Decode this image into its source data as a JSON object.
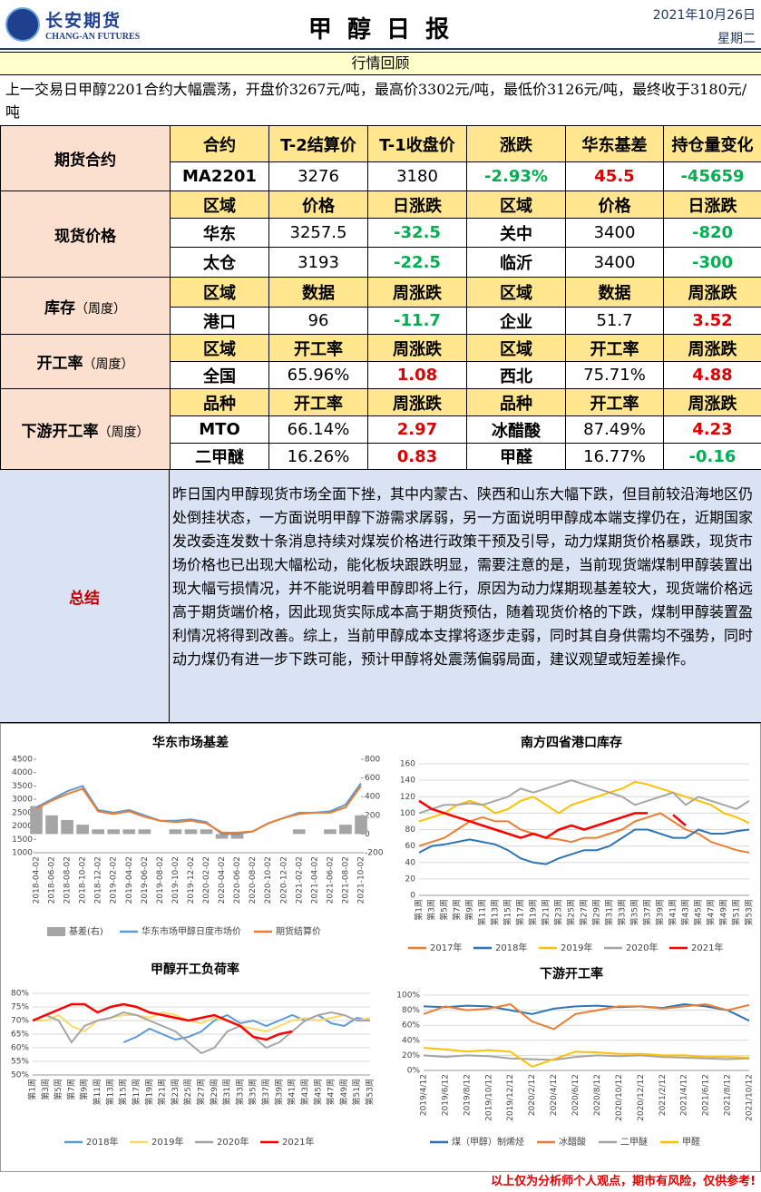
{
  "header": {
    "company": "长安期货",
    "company_en": "CHANG-AN FUTURES",
    "title": "甲 醇 日 报",
    "date": "2021年10月26日",
    "weekday": "星期二"
  },
  "market_review": {
    "title": "行情回顾",
    "text": "上一交易日甲醇2201合约大幅震荡，开盘价3267元/吨，最高价3302元/吨，最低价3126元/吨，最终收于3180元/吨"
  },
  "quote_sections": [
    {
      "label": "期货合约",
      "header": [
        "合约",
        "T-2结算价",
        "T-1收盘价",
        "涨跌",
        "华东基差",
        "持仓量变化"
      ],
      "rows": [
        [
          "MA2201",
          "3276",
          "3180",
          "-2.93%",
          "45.5",
          "-45659"
        ]
      ]
    },
    {
      "label": "现货价格",
      "header": [
        "区域",
        "价格",
        "日涨跌",
        "区域",
        "价格",
        "日涨跌"
      ],
      "rows": [
        [
          "华东",
          "3257.5",
          "-32.5",
          "关中",
          "3400",
          "-820"
        ],
        [
          "太仓",
          "3193",
          "-22.5",
          "临沂",
          "3400",
          "-300"
        ]
      ]
    },
    {
      "label": "库存",
      "sublabel": "（周度）",
      "header": [
        "区域",
        "数据",
        "周涨跌",
        "区域",
        "数据",
        "周涨跌"
      ],
      "rows": [
        [
          "港口",
          "96",
          "-11.7",
          "企业",
          "51.7",
          "3.52"
        ]
      ]
    },
    {
      "label": "开工率",
      "sublabel": "（周度）",
      "header": [
        "区域",
        "开工率",
        "周涨跌",
        "区域",
        "开工率",
        "周涨跌"
      ],
      "rows": [
        [
          "全国",
          "65.96%",
          "1.08",
          "西北",
          "75.71%",
          "4.88"
        ]
      ]
    },
    {
      "label": "下游开工率",
      "sublabel": "（周度）",
      "header": [
        "品种",
        "开工率",
        "周涨跌",
        "品种",
        "开工率",
        "周涨跌"
      ],
      "rows": [
        [
          "MTO",
          "66.14%",
          "2.97",
          "冰醋酸",
          "87.49%",
          "4.23"
        ],
        [
          "二甲醚",
          "16.26%",
          "0.83",
          "甲醛",
          "16.77%",
          "-0.16"
        ]
      ]
    }
  ],
  "summary": {
    "label": "总结",
    "text": "昨日国内甲醇现货市场全面下挫，其中内蒙古、陕西和山东大幅下跌，但目前较沿海地区仍处倒挂状态，一方面说明甲醇下游需求孱弱，另一方面说明甲醇成本端支撑仍在，近期国家发改委连发数十条消息持续对煤炭价格进行政策干预及引导，动力煤期货价格暴跌，现货市场价格也已出现大幅松动，能化板块跟跌明显，需要注意的是，当前现货端煤制甲醇装置出现大幅亏损情况，并不能说明着甲醇即将上行，原因为动力煤期现基差较大，现货端价格远高于期货端价格，因此现货实际成本高于期货预估，随着现货价格的下跌，煤制甲醇装置盈利情况将得到改善。综上，当前甲醇成本支撑将逐步走弱，同时其自身供需均不强势，同时动力煤仍有进一步下跌可能，预计甲醇将处震荡偏弱局面，建议观望或短差操作。"
  },
  "chart_data": [
    {
      "type": "line",
      "title": "华东市场基差",
      "categories": [
        "2018-04-02",
        "2018-06-02",
        "2018-08-02",
        "2018-10-02",
        "2018-12-02",
        "2019-02-02",
        "2019-04-02",
        "2019-06-02",
        "2019-08-02",
        "2019-10-02",
        "2019-12-02",
        "2020-02-02",
        "2020-04-02",
        "2020-06-02",
        "2020-08-02",
        "2020-10-02",
        "2020-12-02",
        "2021-02-02",
        "2021-04-02",
        "2021-06-02",
        "2021-08-02",
        "2021-10-02"
      ],
      "ylim": [
        1000,
        4500
      ],
      "yticks": [
        1000,
        1500,
        2000,
        2500,
        3000,
        3500,
        4000,
        4500
      ],
      "y2lim": [
        -200,
        800
      ],
      "y2ticks": [
        -200,
        0,
        200,
        400,
        600,
        800
      ],
      "grid": false,
      "series": [
        {
          "name": "基差(右)",
          "type": "bar",
          "axis": "y2",
          "color": "#a5a5a5",
          "values": [
            300,
            200,
            150,
            100,
            50,
            50,
            50,
            50,
            0,
            50,
            50,
            50,
            -50,
            -50,
            0,
            0,
            0,
            50,
            0,
            50,
            100,
            200
          ]
        },
        {
          "name": "华东市场甲醇日度市场价",
          "color": "#5b9bd5",
          "values": [
            2700,
            3000,
            3300,
            3500,
            2600,
            2500,
            2600,
            2400,
            2200,
            2200,
            2250,
            2150,
            1700,
            1700,
            1800,
            2100,
            2300,
            2500,
            2500,
            2550,
            2800,
            3600
          ]
        },
        {
          "name": "期货结算价",
          "color": "#ed7d31",
          "values": [
            2650,
            2950,
            3200,
            3400,
            2550,
            2450,
            2550,
            2350,
            2200,
            2150,
            2200,
            2100,
            1750,
            1750,
            1800,
            2100,
            2300,
            2450,
            2500,
            2500,
            2700,
            3500
          ]
        }
      ]
    },
    {
      "type": "line",
      "title": "南方四省港口库存",
      "categories": [
        "第1周",
        "第3周",
        "第5周",
        "第7周",
        "第9周",
        "第11周",
        "第13周",
        "第15周",
        "第17周",
        "第19周",
        "第21周",
        "第23周",
        "第25周",
        "第27周",
        "第29周",
        "第31周",
        "第33周",
        "第35周",
        "第37周",
        "第39周",
        "第41周",
        "第43周",
        "第45周",
        "第47周",
        "第49周",
        "第51周",
        "第53周"
      ],
      "ylim": [
        0,
        160
      ],
      "yticks": [
        0,
        20,
        40,
        60,
        80,
        100,
        120,
        140,
        160
      ],
      "grid": true,
      "series": [
        {
          "name": "2017年",
          "color": "#ed7d31",
          "values": [
            60,
            65,
            70,
            80,
            90,
            95,
            90,
            90,
            80,
            75,
            70,
            68,
            65,
            70,
            70,
            75,
            80,
            90,
            95,
            100,
            90,
            80,
            75,
            65,
            60,
            55,
            52
          ]
        },
        {
          "name": "2018年",
          "color": "#2e75b6",
          "values": [
            52,
            60,
            62,
            65,
            68,
            65,
            62,
            55,
            45,
            40,
            38,
            45,
            50,
            55,
            55,
            60,
            70,
            80,
            80,
            75,
            70,
            70,
            80,
            75,
            75,
            78,
            80
          ]
        },
        {
          "name": "2019年",
          "color": "#ffc000",
          "values": [
            90,
            95,
            100,
            110,
            115,
            110,
            100,
            105,
            115,
            120,
            110,
            100,
            110,
            115,
            120,
            125,
            130,
            138,
            135,
            130,
            125,
            120,
            115,
            110,
            100,
            95,
            88
          ]
        },
        {
          "name": "2020年",
          "color": "#a5a5a5",
          "values": [
            100,
            105,
            110,
            110,
            112,
            110,
            115,
            120,
            130,
            125,
            130,
            135,
            140,
            135,
            130,
            125,
            120,
            110,
            115,
            120,
            125,
            110,
            120,
            115,
            110,
            105,
            115
          ]
        },
        {
          "name": "2021年",
          "color": "#ff0000",
          "values": [
            115,
            105,
            100,
            95,
            90,
            85,
            80,
            75,
            70,
            75,
            70,
            80,
            85,
            80,
            85,
            90,
            95,
            100,
            100,
            null,
            98,
            85,
            null,
            null,
            null,
            null,
            null
          ]
        }
      ]
    },
    {
      "type": "line",
      "title": "甲醇开工负荷率",
      "categories": [
        "第1周",
        "第3周",
        "第5周",
        "第7周",
        "第9周",
        "第11周",
        "第13周",
        "第15周",
        "第17周",
        "第19周",
        "第21周",
        "第23周",
        "第25周",
        "第27周",
        "第29周",
        "第31周",
        "第33周",
        "第35周",
        "第37周",
        "第39周",
        "第41周",
        "第43周",
        "第45周",
        "第47周",
        "第49周",
        "第51周",
        "第53周"
      ],
      "ylim": [
        50,
        80
      ],
      "yticks": [
        {
          "value": 50,
          "label": "50%"
        },
        {
          "value": 55,
          "label": "55%"
        },
        {
          "value": 60,
          "label": "60%"
        },
        {
          "value": 65,
          "label": "65%"
        },
        {
          "value": 70,
          "label": "70%"
        },
        {
          "value": 75,
          "label": "75%"
        },
        {
          "value": 80,
          "label": "80%"
        }
      ],
      "grid": true,
      "series": [
        {
          "name": "2018年",
          "color": "#5b9bd5",
          "values": [
            null,
            null,
            null,
            null,
            null,
            null,
            null,
            62,
            64,
            67,
            65,
            63,
            64,
            66,
            70,
            72,
            69,
            70,
            68,
            70,
            72,
            70,
            72,
            69,
            68,
            71,
            70
          ]
        },
        {
          "name": "2019年",
          "color": "#ffd966",
          "values": [
            70,
            70,
            72,
            68,
            66,
            70,
            71,
            72,
            72,
            71,
            73,
            72,
            70,
            69,
            71,
            70,
            68,
            67,
            66,
            68,
            70,
            71,
            70,
            71,
            72,
            70,
            71
          ]
        },
        {
          "name": "2020年",
          "color": "#a5a5a5",
          "values": [
            70,
            72,
            70,
            62,
            68,
            70,
            71,
            73,
            72,
            70,
            68,
            66,
            62,
            58,
            60,
            66,
            68,
            64,
            60,
            62,
            66,
            70,
            72,
            73,
            72,
            70,
            70
          ]
        },
        {
          "name": "2021年",
          "color": "#ff0000",
          "values": [
            70,
            72,
            74,
            76,
            76,
            73,
            75,
            76,
            75,
            73,
            72,
            71,
            70,
            71,
            72,
            70,
            68,
            64,
            63,
            65,
            66,
            null,
            null,
            null,
            null,
            null,
            null
          ]
        }
      ]
    },
    {
      "type": "line",
      "title": "下游开工率",
      "categories": [
        "2019/4/12",
        "2019/6/12",
        "2019/8/12",
        "2019/10/12",
        "2019/12/12",
        "2020/2/12",
        "2020/4/12",
        "2020/6/12",
        "2020/8/12",
        "2020/10/12",
        "2020/12/12",
        "2021/2/12",
        "2021/4/12",
        "2021/6/12",
        "2021/8/12",
        "2021/10/12"
      ],
      "ylim": [
        0,
        100
      ],
      "yticks": [
        {
          "value": 0,
          "label": "0%"
        },
        {
          "value": 20,
          "label": "20%"
        },
        {
          "value": 40,
          "label": "40%"
        },
        {
          "value": 60,
          "label": "60%"
        },
        {
          "value": 80,
          "label": "80%"
        },
        {
          "value": 100,
          "label": "100%"
        }
      ],
      "grid": true,
      "series": [
        {
          "name": "煤（甲醇）制烯烃",
          "color": "#2e75b6",
          "values": [
            85,
            84,
            86,
            85,
            80,
            75,
            82,
            85,
            86,
            84,
            85,
            83,
            88,
            85,
            80,
            66
          ]
        },
        {
          "name": "冰醋酸",
          "color": "#ed7d31",
          "values": [
            75,
            85,
            80,
            82,
            88,
            65,
            55,
            75,
            80,
            85,
            85,
            82,
            85,
            88,
            80,
            87
          ]
        },
        {
          "name": "二甲醚",
          "color": "#a5a5a5",
          "values": [
            20,
            18,
            20,
            19,
            16,
            15,
            14,
            18,
            20,
            19,
            20,
            18,
            17,
            16,
            15,
            16
          ]
        },
        {
          "name": "甲醛",
          "color": "#ffc000",
          "values": [
            30,
            28,
            25,
            27,
            25,
            5,
            15,
            25,
            24,
            22,
            22,
            20,
            20,
            18,
            18,
            17
          ]
        }
      ]
    }
  ],
  "footer": "以上仅为分析师个人观点，期市有风险，仅供参考!"
}
